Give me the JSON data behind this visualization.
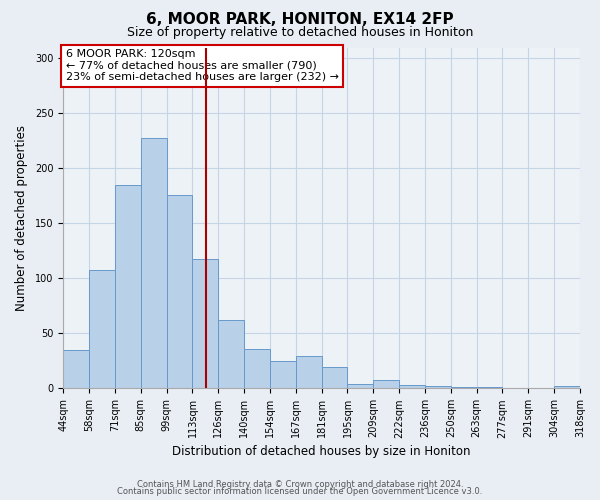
{
  "title": "6, MOOR PARK, HONITON, EX14 2FP",
  "subtitle": "Size of property relative to detached houses in Honiton",
  "xlabel": "Distribution of detached houses by size in Honiton",
  "ylabel": "Number of detached properties",
  "bin_labels": [
    "44sqm",
    "58sqm",
    "71sqm",
    "85sqm",
    "99sqm",
    "113sqm",
    "126sqm",
    "140sqm",
    "154sqm",
    "167sqm",
    "181sqm",
    "195sqm",
    "209sqm",
    "222sqm",
    "236sqm",
    "250sqm",
    "263sqm",
    "277sqm",
    "291sqm",
    "304sqm",
    "318sqm"
  ],
  "bar_values": [
    35,
    108,
    185,
    228,
    176,
    118,
    62,
    36,
    25,
    29,
    19,
    4,
    8,
    3,
    2,
    1,
    1,
    0,
    0,
    2
  ],
  "bar_color": "#b8d0e8",
  "bar_edge_color": "#6699cc",
  "vline_color": "#aa0000",
  "ylim": [
    0,
    310
  ],
  "yticks": [
    0,
    50,
    100,
    150,
    200,
    250,
    300
  ],
  "bin_edges": [
    44,
    58,
    71,
    85,
    99,
    113,
    126,
    140,
    154,
    167,
    181,
    195,
    209,
    222,
    236,
    250,
    263,
    277,
    291,
    304,
    318
  ],
  "vline_val": 120,
  "annotation_line1": "6 MOOR PARK: 120sqm",
  "annotation_line2": "← 77% of detached houses are smaller (790)",
  "annotation_line3": "23% of semi-detached houses are larger (232) →",
  "annotation_box_facecolor": "#ffffff",
  "annotation_box_edgecolor": "#cc0000",
  "footer_line1": "Contains HM Land Registry data © Crown copyright and database right 2024.",
  "footer_line2": "Contains public sector information licensed under the Open Government Licence v3.0.",
  "bg_color": "#e8eef4",
  "plot_bg_color": "#edf2f7",
  "grid_color": "#c5d5e5",
  "title_fontsize": 11,
  "subtitle_fontsize": 9,
  "axis_label_fontsize": 8.5,
  "tick_fontsize": 7,
  "annotation_fontsize": 8,
  "footer_fontsize": 6
}
